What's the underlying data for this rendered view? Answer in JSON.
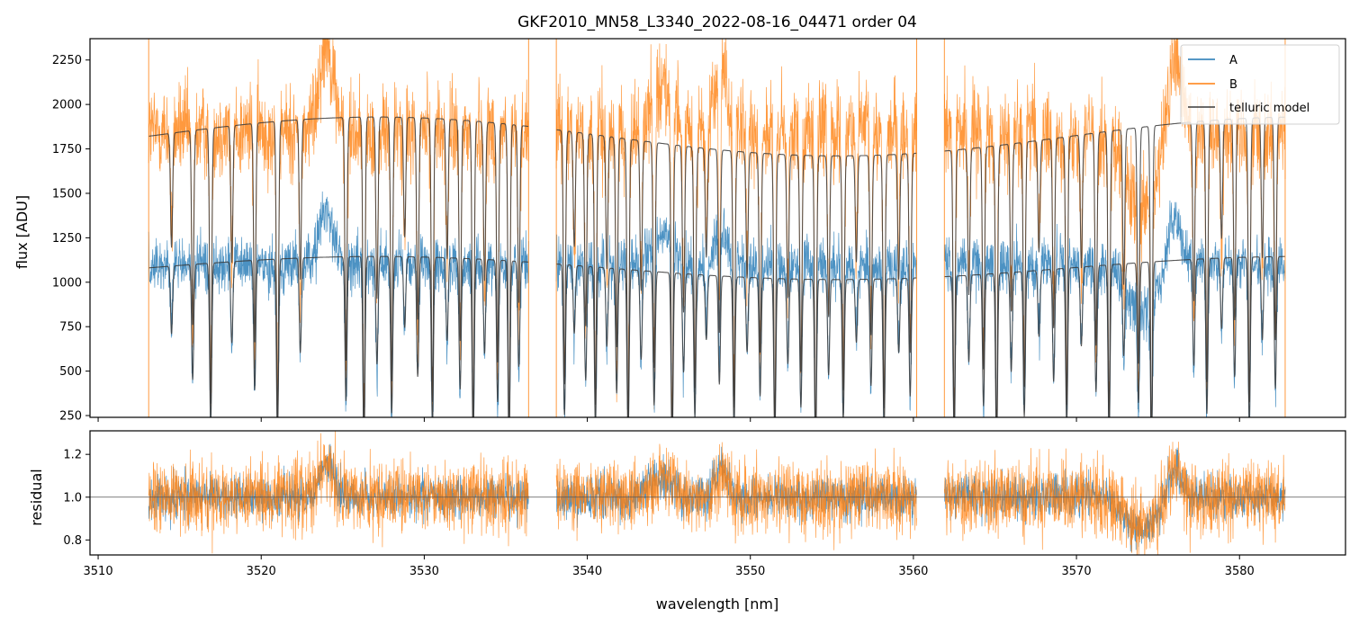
{
  "chart_data": {
    "type": "line",
    "title": "GKF2010_MN58_L3340_2022-08-16_04471  order 04",
    "xlabel": "wavelength [nm]",
    "x_ticks": [
      3510,
      3520,
      3530,
      3540,
      3550,
      3560,
      3570,
      3580
    ],
    "xlim": [
      3509.5,
      3586.5
    ],
    "gaps_nm": [
      [
        3536.4,
        3538.1
      ],
      [
        3560.2,
        3561.9
      ]
    ],
    "top_panel": {
      "ylabel": "flux [ADU]",
      "ylim": [
        240,
        2370
      ],
      "y_ticks": [
        250,
        500,
        750,
        1000,
        1250,
        1500,
        1750,
        2000,
        2250
      ],
      "series": [
        {
          "name": "A",
          "color": "#1f77b4",
          "x_range": [
            3513.1,
            3582.8
          ],
          "continuum": 1100,
          "noise": 110
        },
        {
          "name": "B",
          "color": "#ff7f0e",
          "x_range": [
            3513.1,
            3582.8
          ],
          "continuum": 1850,
          "noise": 190
        },
        {
          "name": "telluric model",
          "color": "#3a3a3a",
          "x_range": [
            3513.1,
            3582.8
          ],
          "model_A_level": 1080,
          "model_B_level": 1820
        }
      ],
      "legend": {
        "position": "top-right",
        "entries": [
          "A",
          "B",
          "telluric model"
        ]
      }
    },
    "bottom_panel": {
      "ylabel": "residual",
      "ylim": [
        0.73,
        1.31
      ],
      "y_ticks": [
        0.8,
        1.0,
        1.2
      ],
      "y_tick_labels": [
        "0.8",
        "1.0",
        "1.2"
      ],
      "reference_line": 1.0,
      "series": [
        {
          "name": "A",
          "color": "#1f77b4",
          "center": 1.0,
          "spread": 0.07
        },
        {
          "name": "B",
          "color": "#ff7f0e",
          "center": 1.0,
          "spread": 0.12
        }
      ]
    },
    "absorption_lines_nm": [
      3514.5,
      3515.8,
      3516.9,
      3518.2,
      3519.6,
      3521.0,
      3522.4,
      3525.2,
      3526.3,
      3527.1,
      3528.0,
      3528.8,
      3529.6,
      3530.5,
      3531.4,
      3532.2,
      3533.0,
      3533.7,
      3534.5,
      3535.2,
      3535.8,
      3538.6,
      3539.2,
      3539.9,
      3540.5,
      3541.2,
      3541.8,
      3542.5,
      3543.3,
      3544.1,
      3545.2,
      3545.9,
      3546.6,
      3547.3,
      3548.1,
      3549.0,
      3549.8,
      3550.6,
      3551.5,
      3552.3,
      3553.1,
      3554.0,
      3554.8,
      3555.7,
      3556.5,
      3557.4,
      3558.2,
      3559.1,
      3559.8,
      3562.5,
      3563.4,
      3564.3,
      3565.1,
      3566.0,
      3566.8,
      3567.7,
      3568.6,
      3569.4,
      3570.3,
      3571.2,
      3572.0,
      3572.9,
      3573.8,
      3574.6,
      3577.2,
      3578.0,
      3578.9,
      3579.7,
      3580.6,
      3581.4,
      3582.2
    ]
  }
}
